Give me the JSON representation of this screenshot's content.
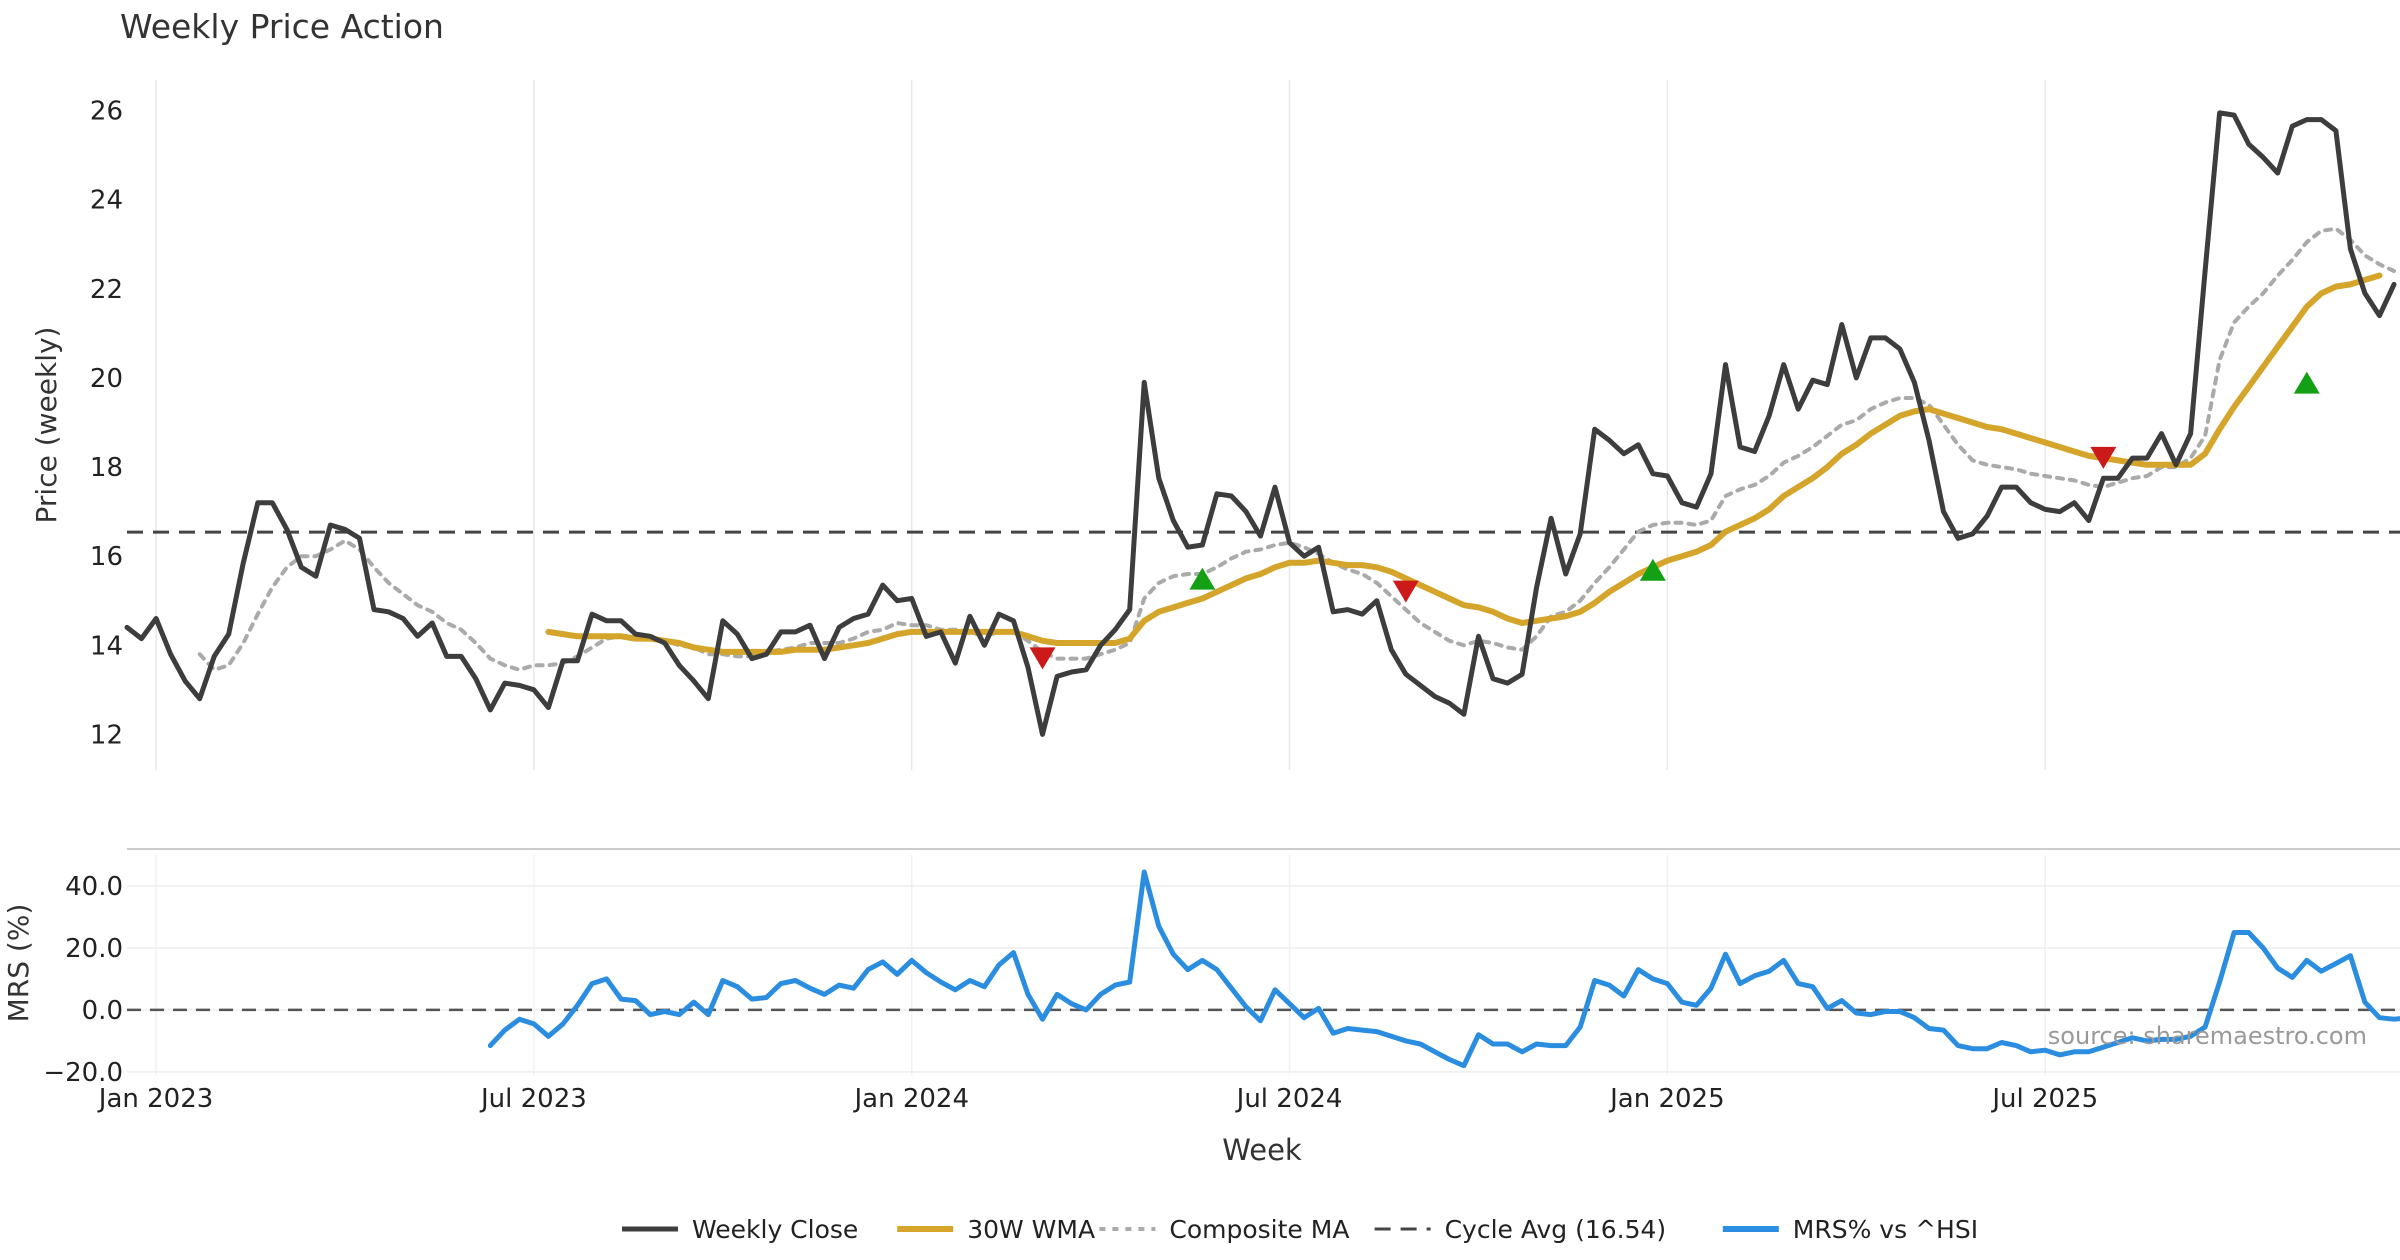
{
  "source_text": "source: sharemaestro.com",
  "colors": {
    "close": "#3d3d3d",
    "wma": "#d4a52a",
    "composite": "#aaaaaa",
    "cycle": "#444444",
    "mrs": "#2b8de0",
    "buy": "#14a014",
    "sell": "#cc1a1a",
    "grid": "#e8e8e8"
  },
  "chart_data": [
    {
      "type": "line",
      "title": "Weekly Price Action",
      "ylabel": "Price (weekly)",
      "ylim": [
        11.2,
        26.8
      ],
      "y_ticks": [
        12,
        14,
        16,
        18,
        20,
        22,
        24,
        26
      ],
      "x_ticks": [
        "Jan 2023",
        "Jul 2023",
        "Jan 2024",
        "Jul 2024",
        "Jan 2025",
        "Jul 2025"
      ],
      "cycle_avg": 16.54,
      "series": [
        {
          "name": "Weekly Close",
          "values": [
            14.4,
            14.15,
            14.6,
            13.8,
            13.2,
            12.8,
            13.75,
            14.25,
            15.85,
            17.2,
            17.2,
            16.6,
            15.75,
            15.55,
            16.7,
            16.6,
            16.4,
            14.8,
            14.75,
            14.6,
            14.2,
            14.5,
            13.75,
            13.75,
            13.25,
            12.55,
            13.15,
            13.1,
            13.0,
            12.6,
            13.65,
            13.65,
            14.7,
            14.55,
            14.55,
            14.25,
            14.2,
            14.05,
            13.55,
            13.2,
            12.8,
            14.55,
            14.25,
            13.7,
            13.8,
            14.3,
            14.3,
            14.45,
            13.7,
            14.4,
            14.6,
            14.7,
            15.35,
            15.0,
            15.05,
            14.2,
            14.3,
            13.6,
            14.65,
            14.0,
            14.7,
            14.55,
            13.5,
            12.0,
            13.3,
            13.4,
            13.45,
            14.0,
            14.35,
            14.8,
            19.9,
            17.75,
            16.8,
            16.2,
            16.25,
            17.4,
            17.35,
            17.0,
            16.45,
            17.55,
            16.3,
            16.0,
            16.2,
            14.75,
            14.8,
            14.7,
            15.0,
            13.9,
            13.35,
            13.1,
            12.85,
            12.7,
            12.45,
            14.2,
            13.25,
            13.15,
            13.35,
            15.3,
            16.85,
            15.6,
            16.5,
            18.85,
            18.6,
            18.3,
            18.5,
            17.85,
            17.8,
            17.2,
            17.1,
            17.85,
            20.3,
            18.45,
            18.35,
            19.15,
            20.3,
            19.3,
            19.95,
            19.85,
            21.2,
            20.0,
            20.9,
            20.9,
            20.65,
            19.9,
            18.6,
            17.0,
            16.4,
            16.5,
            16.9,
            17.55,
            17.55,
            17.2,
            17.05,
            17.0,
            17.2,
            16.8,
            17.75,
            17.75,
            18.2,
            18.2,
            18.75,
            18.05,
            18.75,
            22.4,
            25.95,
            25.9,
            25.25,
            24.95,
            24.6,
            25.65,
            25.8,
            25.8,
            25.55,
            22.9,
            21.9,
            21.4,
            22.1
          ]
        },
        {
          "name": "30W WMA",
          "values": [
            null,
            null,
            null,
            null,
            null,
            null,
            null,
            null,
            null,
            null,
            null,
            null,
            null,
            null,
            null,
            null,
            null,
            null,
            null,
            null,
            null,
            null,
            null,
            null,
            null,
            null,
            null,
            null,
            null,
            14.3,
            14.25,
            14.2,
            14.2,
            14.2,
            14.2,
            14.15,
            14.15,
            14.1,
            14.05,
            13.95,
            13.9,
            13.85,
            13.85,
            13.85,
            13.85,
            13.85,
            13.9,
            13.9,
            13.9,
            13.95,
            14.0,
            14.05,
            14.15,
            14.25,
            14.3,
            14.3,
            14.3,
            14.3,
            14.3,
            14.3,
            14.3,
            14.3,
            14.2,
            14.1,
            14.05,
            14.05,
            14.05,
            14.05,
            14.05,
            14.15,
            14.55,
            14.75,
            14.85,
            14.95,
            15.05,
            15.2,
            15.35,
            15.5,
            15.6,
            15.75,
            15.85,
            15.85,
            15.9,
            15.85,
            15.8,
            15.8,
            15.75,
            15.65,
            15.5,
            15.35,
            15.2,
            15.05,
            14.9,
            14.85,
            14.75,
            14.6,
            14.5,
            14.55,
            14.6,
            14.65,
            14.75,
            14.95,
            15.2,
            15.4,
            15.6,
            15.75,
            15.9,
            16.0,
            16.1,
            16.25,
            16.55,
            16.7,
            16.85,
            17.05,
            17.35,
            17.55,
            17.75,
            18.0,
            18.3,
            18.5,
            18.75,
            18.95,
            19.15,
            19.25,
            19.3,
            19.2,
            19.1,
            19.0,
            18.9,
            18.85,
            18.75,
            18.65,
            18.55,
            18.45,
            18.35,
            18.25,
            18.2,
            18.15,
            18.1,
            18.05,
            18.05,
            18.05,
            18.05,
            18.3,
            18.85,
            19.35,
            19.8,
            20.25,
            20.7,
            21.15,
            21.6,
            21.9,
            22.05,
            22.1,
            22.2,
            22.3
          ]
        },
        {
          "name": "Composite MA",
          "values": [
            null,
            null,
            null,
            null,
            null,
            13.8,
            13.45,
            13.55,
            14.05,
            14.7,
            15.3,
            15.75,
            16.0,
            16.0,
            16.15,
            16.35,
            16.15,
            15.75,
            15.4,
            15.15,
            14.9,
            14.75,
            14.5,
            14.35,
            14.05,
            13.7,
            13.55,
            13.45,
            13.55,
            13.55,
            13.6,
            13.75,
            13.95,
            14.15,
            14.2,
            14.2,
            14.15,
            14.1,
            14.0,
            13.95,
            13.8,
            13.8,
            13.75,
            13.75,
            13.85,
            13.9,
            13.95,
            14.05,
            14.05,
            14.05,
            14.15,
            14.3,
            14.35,
            14.5,
            14.45,
            14.45,
            14.35,
            14.35,
            14.3,
            14.2,
            14.3,
            14.3,
            14.1,
            13.85,
            13.7,
            13.7,
            13.7,
            13.8,
            13.9,
            14.05,
            15.05,
            15.4,
            15.55,
            15.6,
            15.6,
            15.75,
            15.95,
            16.1,
            16.15,
            16.25,
            16.3,
            16.2,
            16.05,
            15.85,
            15.7,
            15.6,
            15.4,
            15.1,
            14.8,
            14.5,
            14.3,
            14.1,
            14.0,
            14.1,
            14.05,
            13.95,
            13.9,
            14.2,
            14.65,
            14.75,
            15.0,
            15.4,
            15.75,
            16.15,
            16.55,
            16.7,
            16.75,
            16.75,
            16.7,
            16.8,
            17.35,
            17.5,
            17.6,
            17.8,
            18.1,
            18.25,
            18.45,
            18.7,
            18.95,
            19.05,
            19.3,
            19.45,
            19.55,
            19.55,
            19.4,
            18.95,
            18.5,
            18.15,
            18.05,
            18.0,
            17.95,
            17.85,
            17.8,
            17.75,
            17.7,
            17.6,
            17.55,
            17.65,
            17.75,
            17.8,
            18.0,
            18.0,
            18.2,
            18.7,
            20.4,
            21.25,
            21.6,
            21.9,
            22.3,
            22.65,
            23.05,
            23.3,
            23.35,
            23.1,
            22.75,
            22.55,
            22.4
          ]
        }
      ],
      "signals": [
        {
          "type": "sell",
          "week": 63,
          "value": 13.75
        },
        {
          "type": "buy",
          "week": 74,
          "value": 15.45
        },
        {
          "type": "sell",
          "week": 88,
          "value": 15.25
        },
        {
          "type": "buy",
          "week": 105,
          "value": 15.65
        },
        {
          "type": "sell",
          "week": 136,
          "value": 18.25
        },
        {
          "type": "buy",
          "week": 150,
          "value": 19.85
        }
      ]
    },
    {
      "type": "line",
      "ylabel": "MRS (%)",
      "xlabel": "Week",
      "ylim": [
        -21,
        50
      ],
      "y_ticks": [
        "40.0",
        "20.0",
        "0.0",
        "−20.0"
      ],
      "y_tick_values": [
        40,
        20,
        0,
        -20
      ],
      "zero_line": 0,
      "series": [
        {
          "name": "MRS% vs ^HSI",
          "values": [
            null,
            null,
            null,
            null,
            null,
            null,
            null,
            null,
            null,
            null,
            null,
            null,
            null,
            null,
            null,
            null,
            null,
            null,
            null,
            null,
            null,
            null,
            null,
            null,
            null,
            -11.5,
            -6.5,
            -3.0,
            -4.5,
            -8.5,
            -4.5,
            1.5,
            8.5,
            10.0,
            3.5,
            3.0,
            -1.5,
            -0.5,
            -1.5,
            2.5,
            -1.5,
            9.5,
            7.5,
            3.5,
            4.0,
            8.5,
            9.5,
            7.0,
            5.0,
            8.0,
            7.0,
            13.0,
            15.5,
            11.5,
            16.0,
            12.0,
            9.0,
            6.5,
            9.5,
            7.5,
            14.5,
            18.5,
            5.0,
            -3.0,
            5.0,
            2.0,
            0.0,
            5.0,
            8.0,
            9.0,
            44.5,
            27.0,
            18.0,
            13.0,
            16.0,
            13.0,
            7.0,
            1.0,
            -3.5,
            6.5,
            2.0,
            -2.5,
            0.5,
            -7.5,
            -6.0,
            -6.5,
            -7.0,
            -8.5,
            -10.0,
            -11.0,
            -13.5,
            -16.0,
            -18.0,
            -8.0,
            -11.0,
            -11.0,
            -13.5,
            -11.0,
            -11.5,
            -11.5,
            -5.5,
            9.5,
            8.0,
            4.5,
            13.0,
            10.0,
            8.5,
            2.5,
            1.5,
            7.0,
            18.0,
            8.5,
            11.0,
            12.5,
            16.0,
            8.5,
            7.5,
            0.5,
            3.0,
            -1.0,
            -1.5,
            -0.5,
            -0.5,
            -2.5,
            -6.0,
            -6.5,
            -11.5,
            -12.5,
            -12.5,
            -10.5,
            -11.5,
            -13.5,
            -13.0,
            -14.5,
            -13.5,
            -13.5,
            -12.0,
            -10.5,
            -9.0,
            -10.0,
            -9.5,
            -9.5,
            -8.5,
            -5.5,
            9.0,
            25.0,
            25.0,
            20.0,
            13.5,
            10.5,
            16.0,
            12.5,
            15.0,
            17.5,
            2.5,
            -2.5,
            -3.0,
            -2.5
          ]
        }
      ]
    }
  ],
  "legend": [
    {
      "label": "Weekly Close",
      "style": "close"
    },
    {
      "label": "30W WMA",
      "style": "wma"
    },
    {
      "label": "Composite MA",
      "style": "composite"
    },
    {
      "label": "Cycle Avg (16.54)",
      "style": "cycle"
    },
    {
      "label": "MRS% vs ^HSI",
      "style": "mrs"
    }
  ]
}
